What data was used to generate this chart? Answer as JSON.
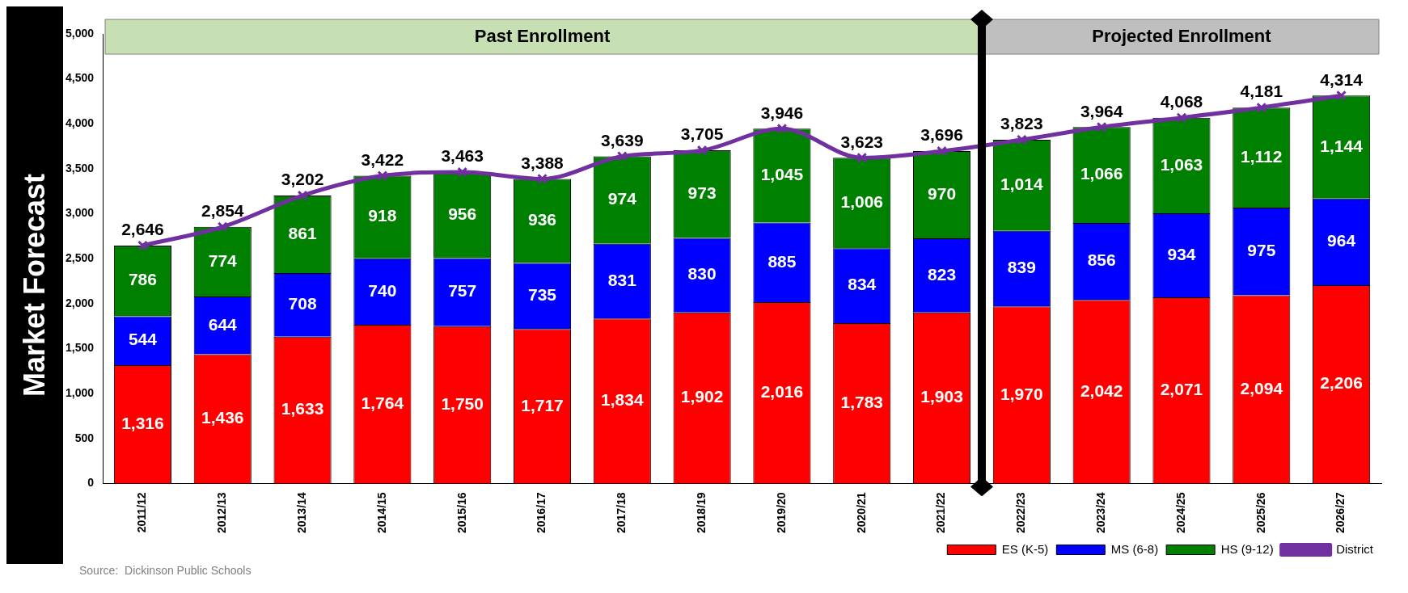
{
  "chart_data": {
    "type": "bar",
    "ylabel": "Market Forecast",
    "stacked": true,
    "categories": [
      "2011/12",
      "2012/13",
      "2013/14",
      "2014/15",
      "2015/16",
      "2016/17",
      "2017/18",
      "2018/19",
      "2019/20",
      "2020/21",
      "2021/22",
      "2022/23",
      "2023/24",
      "2024/25",
      "2025/26",
      "2026/27"
    ],
    "series": [
      {
        "name": "ES (K-5)",
        "color": "#ff0000",
        "values": [
          1316,
          1436,
          1633,
          1764,
          1750,
          1717,
          1834,
          1902,
          2016,
          1783,
          1903,
          1970,
          2042,
          2071,
          2094,
          2206
        ],
        "value_labels": [
          "1,316",
          "1,436",
          "1,633",
          "1,764",
          "1,750",
          "1,717",
          "1,834",
          "1,902",
          "2,016",
          "1,783",
          "1,903",
          "1,970",
          "2,042",
          "2,071",
          "2,094",
          "2,206"
        ]
      },
      {
        "name": "MS (6-8)",
        "color": "#0000ff",
        "values": [
          544,
          644,
          708,
          740,
          757,
          735,
          831,
          830,
          885,
          834,
          823,
          839,
          856,
          934,
          975,
          964
        ],
        "value_labels": [
          "544",
          "644",
          "708",
          "740",
          "757",
          "735",
          "831",
          "830",
          "885",
          "834",
          "823",
          "839",
          "856",
          "934",
          "975",
          "964"
        ]
      },
      {
        "name": "HS (9-12)",
        "color": "#008000",
        "values": [
          786,
          774,
          861,
          918,
          956,
          936,
          974,
          973,
          1045,
          1006,
          970,
          1014,
          1066,
          1063,
          1112,
          1144
        ],
        "value_labels": [
          "786",
          "774",
          "861",
          "918",
          "956",
          "936",
          "974",
          "973",
          "1,045",
          "1,006",
          "970",
          "1,014",
          "1,066",
          "1,063",
          "1,112",
          "1,144"
        ]
      },
      {
        "name": "District",
        "type": "line",
        "color": "#7030a0",
        "marker": "cross",
        "values": [
          2646,
          2854,
          3202,
          3422,
          3463,
          3388,
          3639,
          3705,
          3946,
          3623,
          3696,
          3823,
          3964,
          4068,
          4181,
          4314
        ],
        "value_labels": [
          "2,646",
          "2,854",
          "3,202",
          "3,422",
          "3,463",
          "3,388",
          "3,639",
          "3,705",
          "3,946",
          "3,623",
          "3,696",
          "3,823",
          "3,964",
          "4,068",
          "4,181",
          "4,314"
        ]
      }
    ],
    "ylim": [
      0,
      5000
    ],
    "yticks": [
      0,
      500,
      {
        "value": 1000,
        "label": "1,000"
      },
      {
        "value": 1500,
        "label": "1,500"
      },
      {
        "value": 2000,
        "label": "2,000"
      },
      {
        "value": 2500,
        "label": "2,500"
      },
      {
        "value": 3000,
        "label": "3,000"
      },
      {
        "value": 3500,
        "label": "3,500"
      },
      {
        "value": 4000,
        "label": "4,000"
      },
      {
        "value": 4500,
        "label": "4,500"
      },
      {
        "value": 5000,
        "label": "5,000"
      }
    ],
    "grid": false,
    "legend": "bottom right",
    "bands": [
      {
        "axis": "x",
        "from": "2011/12",
        "to": "2021/22",
        "label": "Past Enrollment",
        "color": "#c6e0b4"
      },
      {
        "axis": "x",
        "from": "2022/23",
        "to": "2026/27",
        "label": "Projected Enrollment",
        "color": "#bfbfbf"
      }
    ],
    "annotations": [
      "Source:  Dickinson Public Schools"
    ]
  }
}
